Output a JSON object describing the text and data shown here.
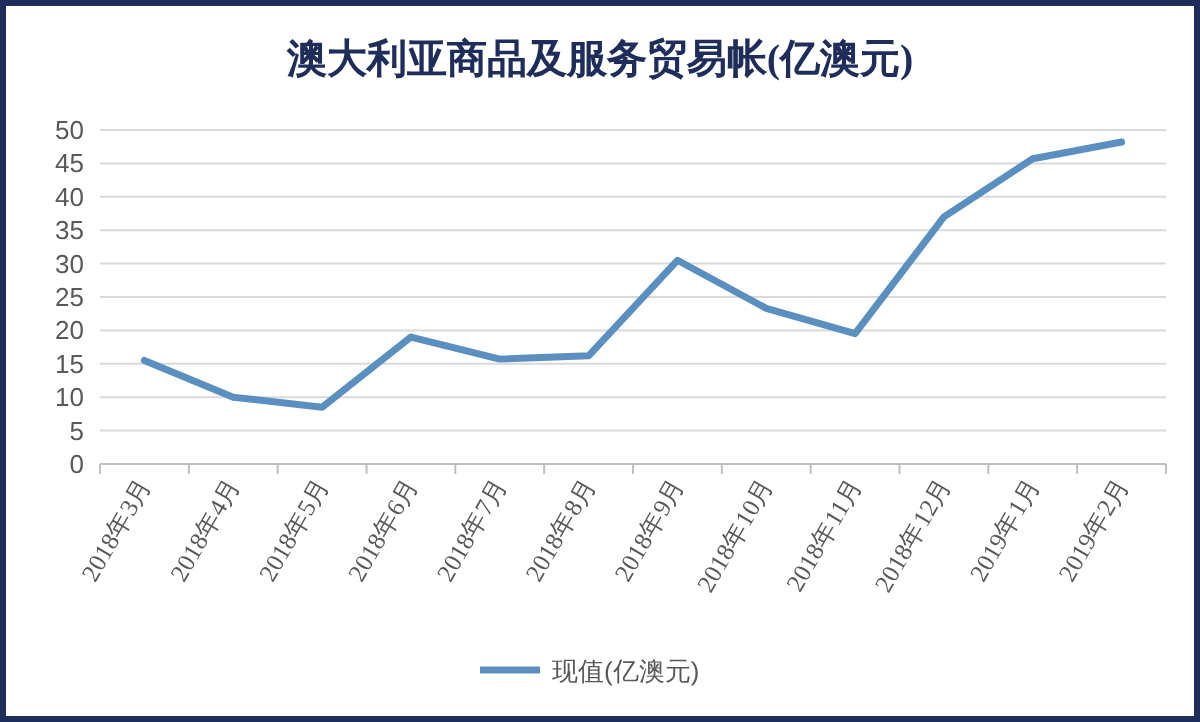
{
  "chart_data": {
    "type": "line",
    "title": "澳大利亚商品及服务贸易帐(亿澳元)",
    "categories": [
      "2018年3月",
      "2018年4月",
      "2018年5月",
      "2018年6月",
      "2018年7月",
      "2018年8月",
      "2018年9月",
      "2018年10月",
      "2018年11月",
      "2018年12月",
      "2019年1月",
      "2019年2月"
    ],
    "series": [
      {
        "name": "现值(亿澳元)",
        "color": "#5b8fc0",
        "values": [
          15.5,
          10,
          8.5,
          19,
          15.7,
          16.2,
          30.5,
          23.3,
          19.5,
          37,
          45.7,
          48.2
        ]
      }
    ],
    "ylim": [
      0,
      50
    ],
    "yticks": [
      0,
      5,
      10,
      15,
      20,
      25,
      30,
      35,
      40,
      45,
      50
    ],
    "grid": "y",
    "legend": "bottom",
    "marker": "none",
    "line_style": "solid"
  }
}
